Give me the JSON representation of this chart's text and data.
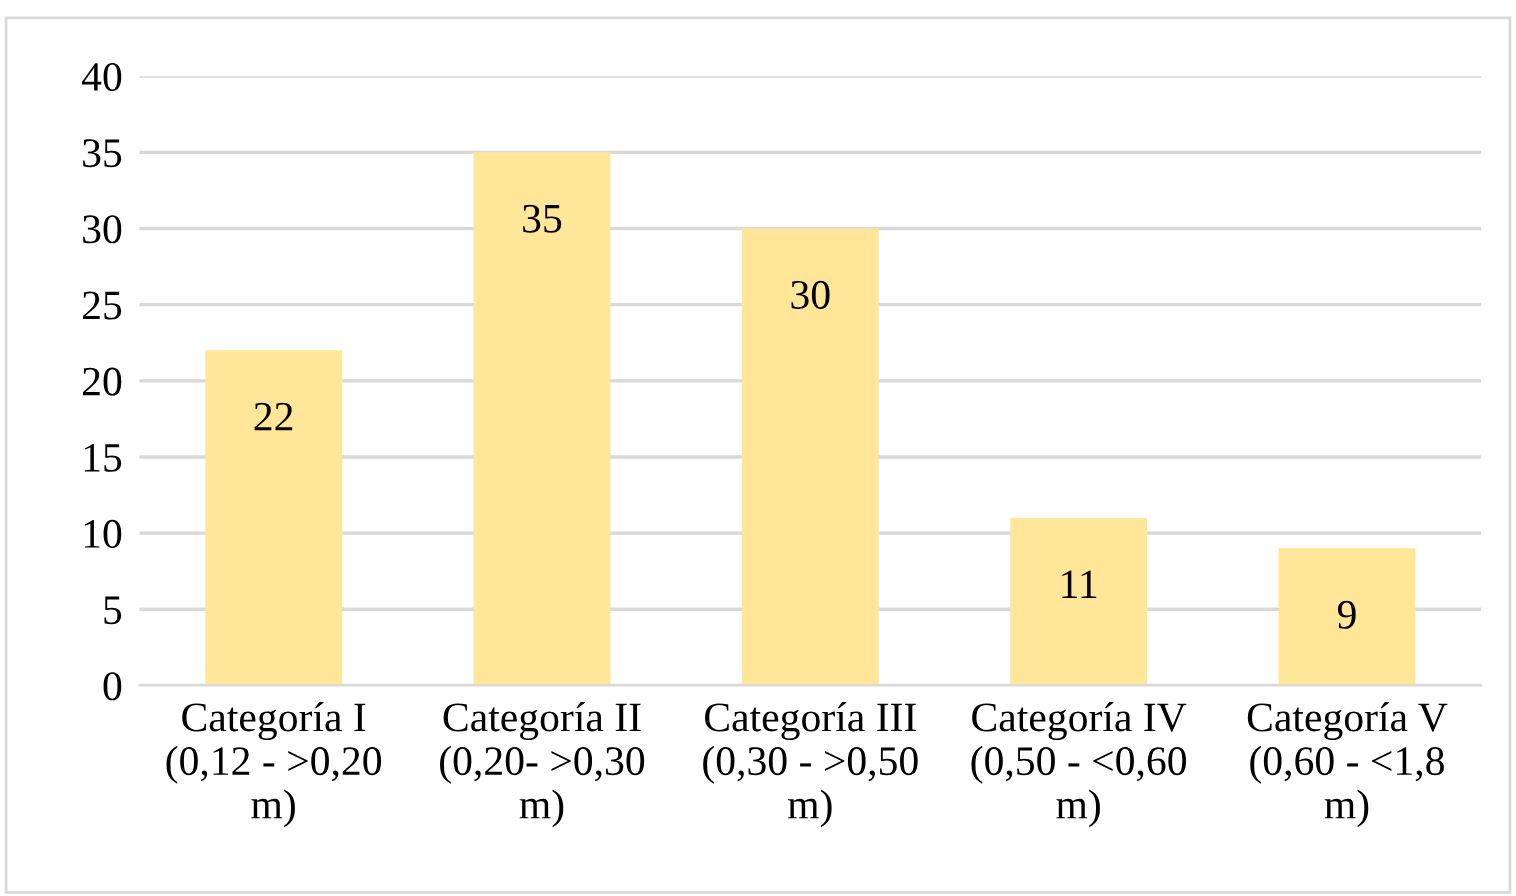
{
  "chart_data": {
    "type": "bar",
    "categories": [
      "Categoría I\n(0,12 - >0,20\nm)",
      "Categoría II\n(0,20- >0,30\nm)",
      "Categoría III\n(0,30 - >0,50\nm)",
      "Categoría IV\n(0,50 - <0,60\nm)",
      "Categoría V\n(0,60 - <1,8\nm)"
    ],
    "values": [
      22,
      35,
      30,
      11,
      9
    ],
    "color": "#ffe699",
    "ylim": [
      0,
      40
    ],
    "yticks": [
      0,
      5,
      10,
      15,
      20,
      25,
      30,
      35,
      40
    ],
    "grid": "y",
    "data_labels": true
  }
}
